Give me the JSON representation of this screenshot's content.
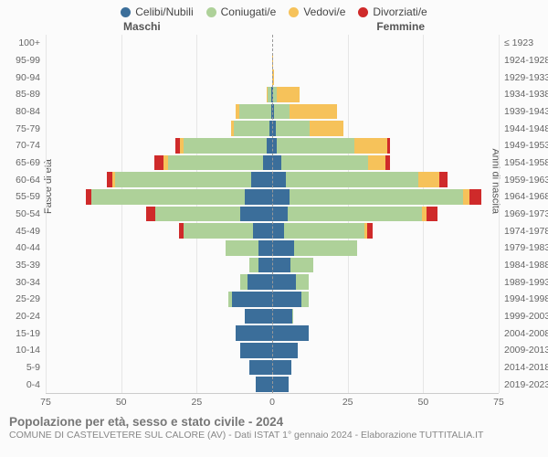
{
  "legend": [
    {
      "label": "Celibi/Nubili",
      "color": "#3b6e9a"
    },
    {
      "label": "Coniugati/e",
      "color": "#aed199"
    },
    {
      "label": "Vedovi/e",
      "color": "#f6c25a"
    },
    {
      "label": "Divorziati/e",
      "color": "#cf2a2a"
    }
  ],
  "gender_left": "Maschi",
  "gender_right": "Femmine",
  "y_title_left": "Fasce di età",
  "y_title_right": "Anni di nascita",
  "x_max": 75,
  "x_ticks": [
    75,
    50,
    25,
    0,
    25,
    50,
    75
  ],
  "title": "Popolazione per età, sesso e stato civile - 2024",
  "subtitle": "COMUNE DI CASTELVETERE SUL CALORE (AV) - Dati ISTAT 1° gennaio 2024 - Elaborazione TUTTITALIA.IT",
  "font_sizes": {
    "legend": 12,
    "axis": 10.5,
    "title": 13.5,
    "subtitle": 10.5
  },
  "colors": {
    "bg": "#fbfbfb",
    "grid": "#e6e6e6",
    "center": "#999999",
    "text": "#666666"
  },
  "rows": [
    {
      "age": "100+",
      "birth": "≤ 1923",
      "m": [
        0,
        0,
        0,
        0
      ],
      "f": [
        0,
        0,
        0,
        0
      ]
    },
    {
      "age": "95-99",
      "birth": "1924-1928",
      "m": [
        0,
        0,
        0,
        0
      ],
      "f": [
        0,
        0,
        3,
        0
      ]
    },
    {
      "age": "90-94",
      "birth": "1929-1933",
      "m": [
        0,
        0,
        2,
        0
      ],
      "f": [
        0,
        0,
        6,
        0
      ]
    },
    {
      "age": "85-89",
      "birth": "1934-1938",
      "m": [
        1,
        9,
        2,
        0
      ],
      "f": [
        1,
        3,
        22,
        0
      ]
    },
    {
      "age": "80-84",
      "birth": "1939-1943",
      "m": [
        1,
        26,
        3,
        0
      ],
      "f": [
        1,
        10,
        29,
        0
      ]
    },
    {
      "age": "75-79",
      "birth": "1944-1948",
      "m": [
        2,
        28,
        2,
        0
      ],
      "f": [
        2,
        20,
        20,
        0
      ]
    },
    {
      "age": "70-74",
      "birth": "1949-1953",
      "m": [
        3,
        42,
        2,
        2
      ],
      "f": [
        2,
        36,
        15,
        1
      ]
    },
    {
      "age": "65-69",
      "birth": "1954-1958",
      "m": [
        4,
        44,
        2,
        4
      ],
      "f": [
        4,
        40,
        8,
        2
      ]
    },
    {
      "age": "60-64",
      "birth": "1959-1963",
      "m": [
        8,
        53,
        1,
        2
      ],
      "f": [
        5,
        50,
        8,
        3
      ]
    },
    {
      "age": "55-59",
      "birth": "1964-1968",
      "m": [
        10,
        56,
        0,
        2
      ],
      "f": [
        6,
        60,
        2,
        4
      ]
    },
    {
      "age": "50-54",
      "birth": "1969-1973",
      "m": [
        14,
        38,
        0,
        4
      ],
      "f": [
        6,
        52,
        2,
        4
      ]
    },
    {
      "age": "45-49",
      "birth": "1974-1978",
      "m": [
        10,
        36,
        0,
        2
      ],
      "f": [
        6,
        40,
        1,
        3
      ]
    },
    {
      "age": "40-44",
      "birth": "1979-1983",
      "m": [
        10,
        24,
        0,
        0
      ],
      "f": [
        12,
        34,
        0,
        0
      ]
    },
    {
      "age": "35-39",
      "birth": "1984-1988",
      "m": [
        14,
        10,
        0,
        0
      ],
      "f": [
        14,
        18,
        0,
        0
      ]
    },
    {
      "age": "30-34",
      "birth": "1989-1993",
      "m": [
        22,
        6,
        0,
        0
      ],
      "f": [
        20,
        10,
        0,
        0
      ]
    },
    {
      "age": "25-29",
      "birth": "1994-1998",
      "m": [
        30,
        3,
        0,
        0
      ],
      "f": [
        24,
        6,
        0,
        0
      ]
    },
    {
      "age": "20-24",
      "birth": "1999-2003",
      "m": [
        26,
        0,
        0,
        0
      ],
      "f": [
        22,
        1,
        0,
        0
      ]
    },
    {
      "age": "15-19",
      "birth": "2004-2008",
      "m": [
        30,
        0,
        0,
        0
      ],
      "f": [
        30,
        0,
        0,
        0
      ]
    },
    {
      "age": "10-14",
      "birth": "2009-2013",
      "m": [
        28,
        0,
        0,
        0
      ],
      "f": [
        25,
        0,
        0,
        0
      ]
    },
    {
      "age": "5-9",
      "birth": "2014-2018",
      "m": [
        24,
        0,
        0,
        0
      ],
      "f": [
        22,
        0,
        0,
        0
      ]
    },
    {
      "age": "0-4",
      "birth": "2019-2023",
      "m": [
        20,
        0,
        0,
        0
      ],
      "f": [
        20,
        0,
        0,
        0
      ]
    }
  ]
}
